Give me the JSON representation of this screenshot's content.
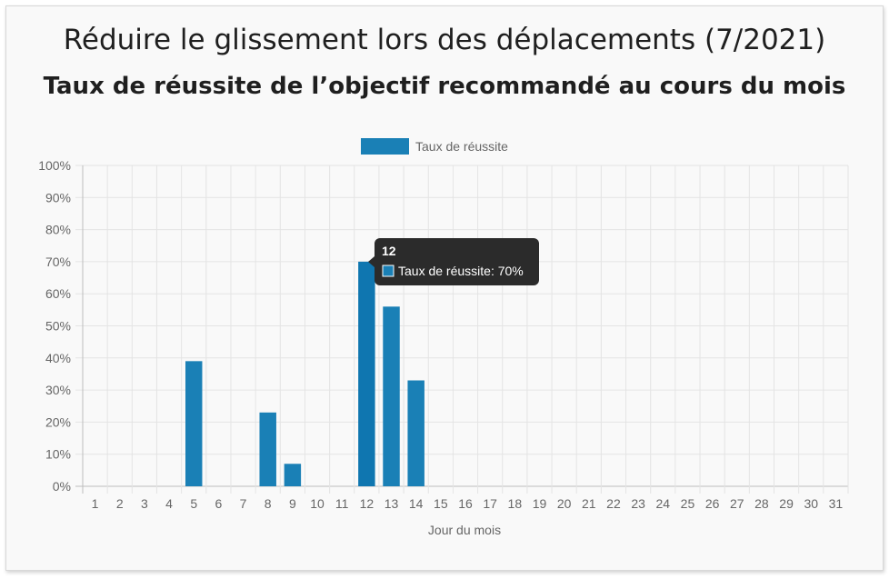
{
  "header": {
    "title": "Réduire le glissement lors des déplacements (7/2021)",
    "subtitle": "Taux de réussite de l’objectif recommandé au cours du mois"
  },
  "colors": {
    "bar": "#1a80b6",
    "bar_active": "#0f76b0",
    "grid": "#e4e4e4",
    "tooltip_bg": "#2b2b2b"
  },
  "tooltip": {
    "title": "12",
    "body": "Taux de réussite: 70%"
  },
  "chart_data": {
    "type": "bar",
    "title": "",
    "xlabel": "Jour du mois",
    "ylabel": "",
    "ylim": [
      0,
      100
    ],
    "y_ticks": [
      "0%",
      "10%",
      "20%",
      "30%",
      "40%",
      "50%",
      "60%",
      "70%",
      "80%",
      "90%",
      "100%"
    ],
    "categories": [
      "1",
      "2",
      "3",
      "4",
      "5",
      "6",
      "7",
      "8",
      "9",
      "10",
      "11",
      "12",
      "13",
      "14",
      "15",
      "16",
      "17",
      "18",
      "19",
      "20",
      "21",
      "22",
      "23",
      "24",
      "25",
      "26",
      "27",
      "28",
      "29",
      "30",
      "31"
    ],
    "legend_position": "top",
    "grid": true,
    "series": [
      {
        "name": "Taux de réussite",
        "values": [
          0,
          0,
          0,
          0,
          39,
          0,
          0,
          23,
          7,
          0,
          0,
          70,
          56,
          33,
          0,
          0,
          0,
          0,
          0,
          0,
          0,
          0,
          0,
          0,
          0,
          0,
          0,
          0,
          0,
          0,
          0
        ]
      }
    ],
    "active_category": "12"
  }
}
